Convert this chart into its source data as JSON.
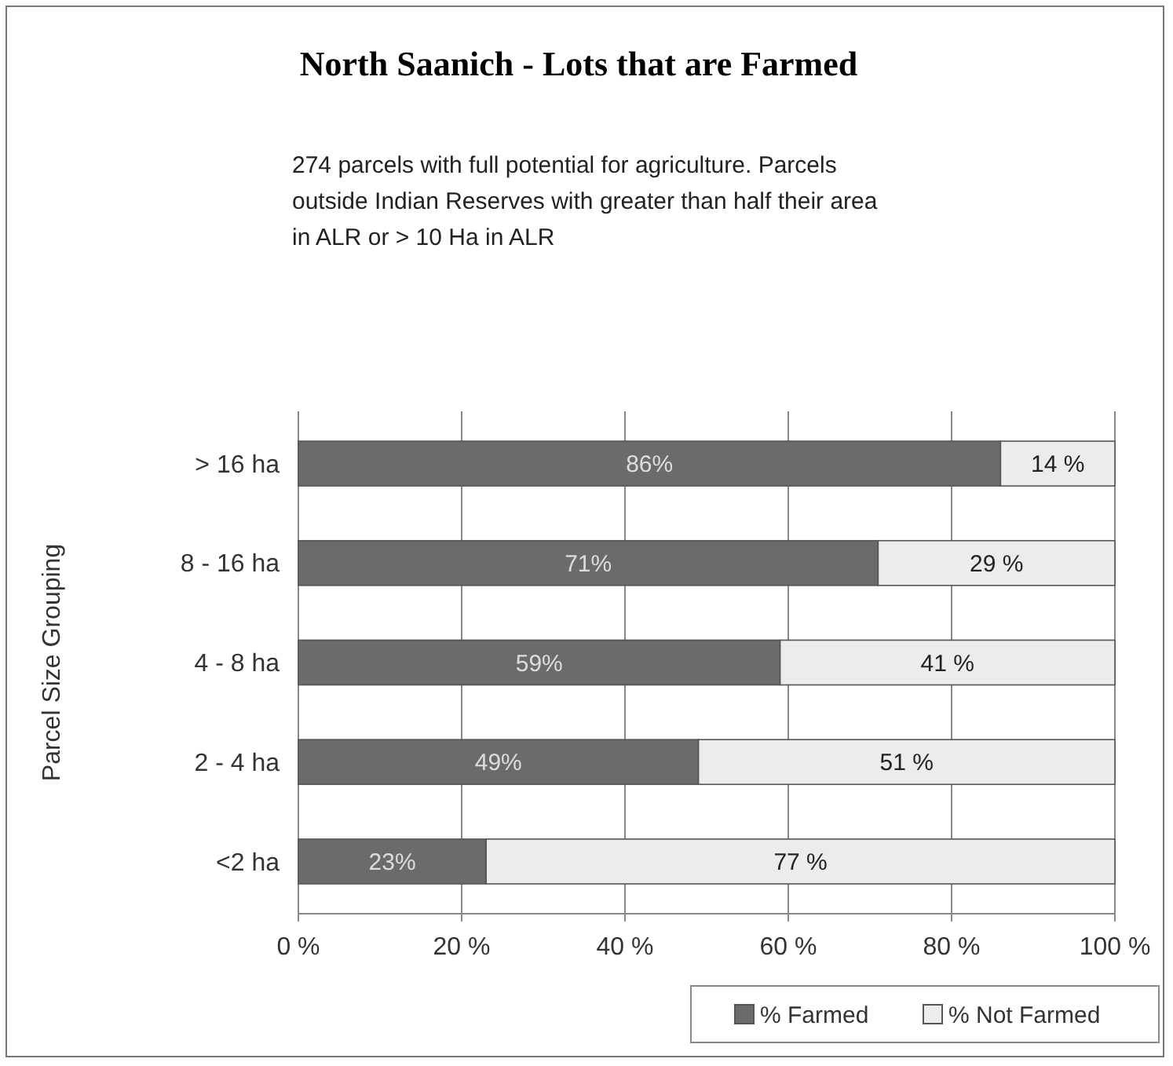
{
  "chart_data": {
    "type": "bar",
    "orientation": "horizontal",
    "stacked": true,
    "title": "North Saanich - Lots that are Farmed",
    "subtitle": "274 parcels with full potential for agriculture.  Parcels outside Indian Reserves with greater than half their area in ALR  or > 10 Ha in ALR",
    "ylabel": "Parcel Size Grouping",
    "categories": [
      "> 16 ha",
      "8 - 16 ha",
      "4 - 8 ha",
      "2 - 4 ha",
      "<2 ha"
    ],
    "series": [
      {
        "name": "% Farmed",
        "color": "#6b6b6b",
        "values": [
          86,
          71,
          59,
          49,
          23
        ],
        "value_labels": [
          "86%",
          "71%",
          "59%",
          "49%",
          "23%"
        ]
      },
      {
        "name": "% Not Farmed",
        "color": "#ececec",
        "values": [
          14,
          29,
          41,
          51,
          77
        ],
        "value_labels": [
          "14 %",
          "29 %",
          "41 %",
          "51 %",
          "77 %"
        ]
      }
    ],
    "xlim": [
      0,
      100
    ],
    "xticks": [
      {
        "value": 0,
        "label": "0 %"
      },
      {
        "value": 20,
        "label": "20 %"
      },
      {
        "value": 40,
        "label": "40 %"
      },
      {
        "value": 60,
        "label": "60 %"
      },
      {
        "value": 80,
        "label": "80 %"
      },
      {
        "value": 100,
        "label": "100 %"
      }
    ],
    "grid": "x",
    "legend": "bottom"
  }
}
